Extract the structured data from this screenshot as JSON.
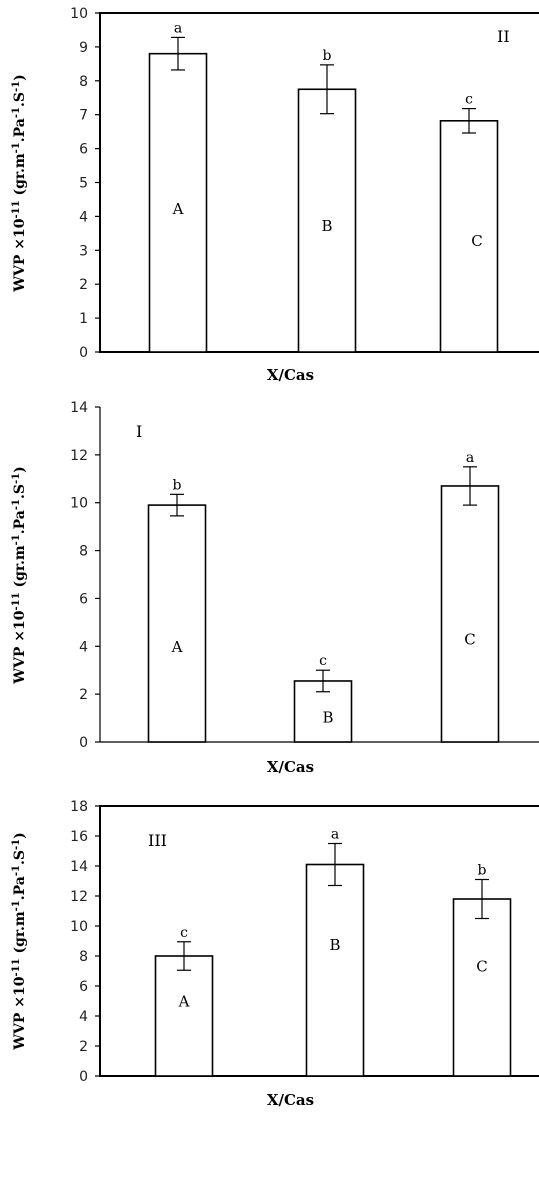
{
  "chart_data": [
    {
      "type": "bar",
      "panel_label": "II",
      "categories": [
        "A",
        "B",
        "C"
      ],
      "values": [
        8.8,
        7.75,
        6.82
      ],
      "errors": [
        0.48,
        0.72,
        0.36
      ],
      "significance": [
        "a",
        "b",
        "c"
      ],
      "xlabel": "X/Cas",
      "ylabel": "WVP ×10-11 (gr.m-1.Pa-1.S-1)",
      "ylim": [
        0,
        10
      ],
      "yticks": [
        0,
        1,
        2,
        3,
        4,
        5,
        6,
        7,
        8,
        9,
        10
      ],
      "frame": true
    },
    {
      "type": "bar",
      "panel_label": "I",
      "categories": [
        "A",
        "B",
        "C"
      ],
      "values": [
        9.9,
        2.55,
        10.7
      ],
      "errors": [
        0.45,
        0.45,
        0.8
      ],
      "significance": [
        "b",
        "c",
        "a"
      ],
      "xlabel": "X/Cas",
      "ylabel": "WVP ×10-11 (gr.m-1.Pa-1.S-1)",
      "ylim": [
        0,
        14
      ],
      "yticks": [
        0,
        2,
        4,
        6,
        8,
        10,
        12,
        14
      ],
      "frame": false
    },
    {
      "type": "bar",
      "panel_label": "III",
      "categories": [
        "A",
        "B",
        "C"
      ],
      "values": [
        8.0,
        14.1,
        11.8
      ],
      "errors": [
        0.95,
        1.4,
        1.3
      ],
      "significance": [
        "c",
        "a",
        "b"
      ],
      "xlabel": "X/Cas",
      "ylabel": "WVP ×10-11 (gr.m-1.Pa-1.S-1)",
      "ylim": [
        0,
        18
      ],
      "yticks": [
        0,
        2,
        4,
        6,
        8,
        10,
        12,
        14,
        16,
        18
      ],
      "frame": true
    }
  ]
}
